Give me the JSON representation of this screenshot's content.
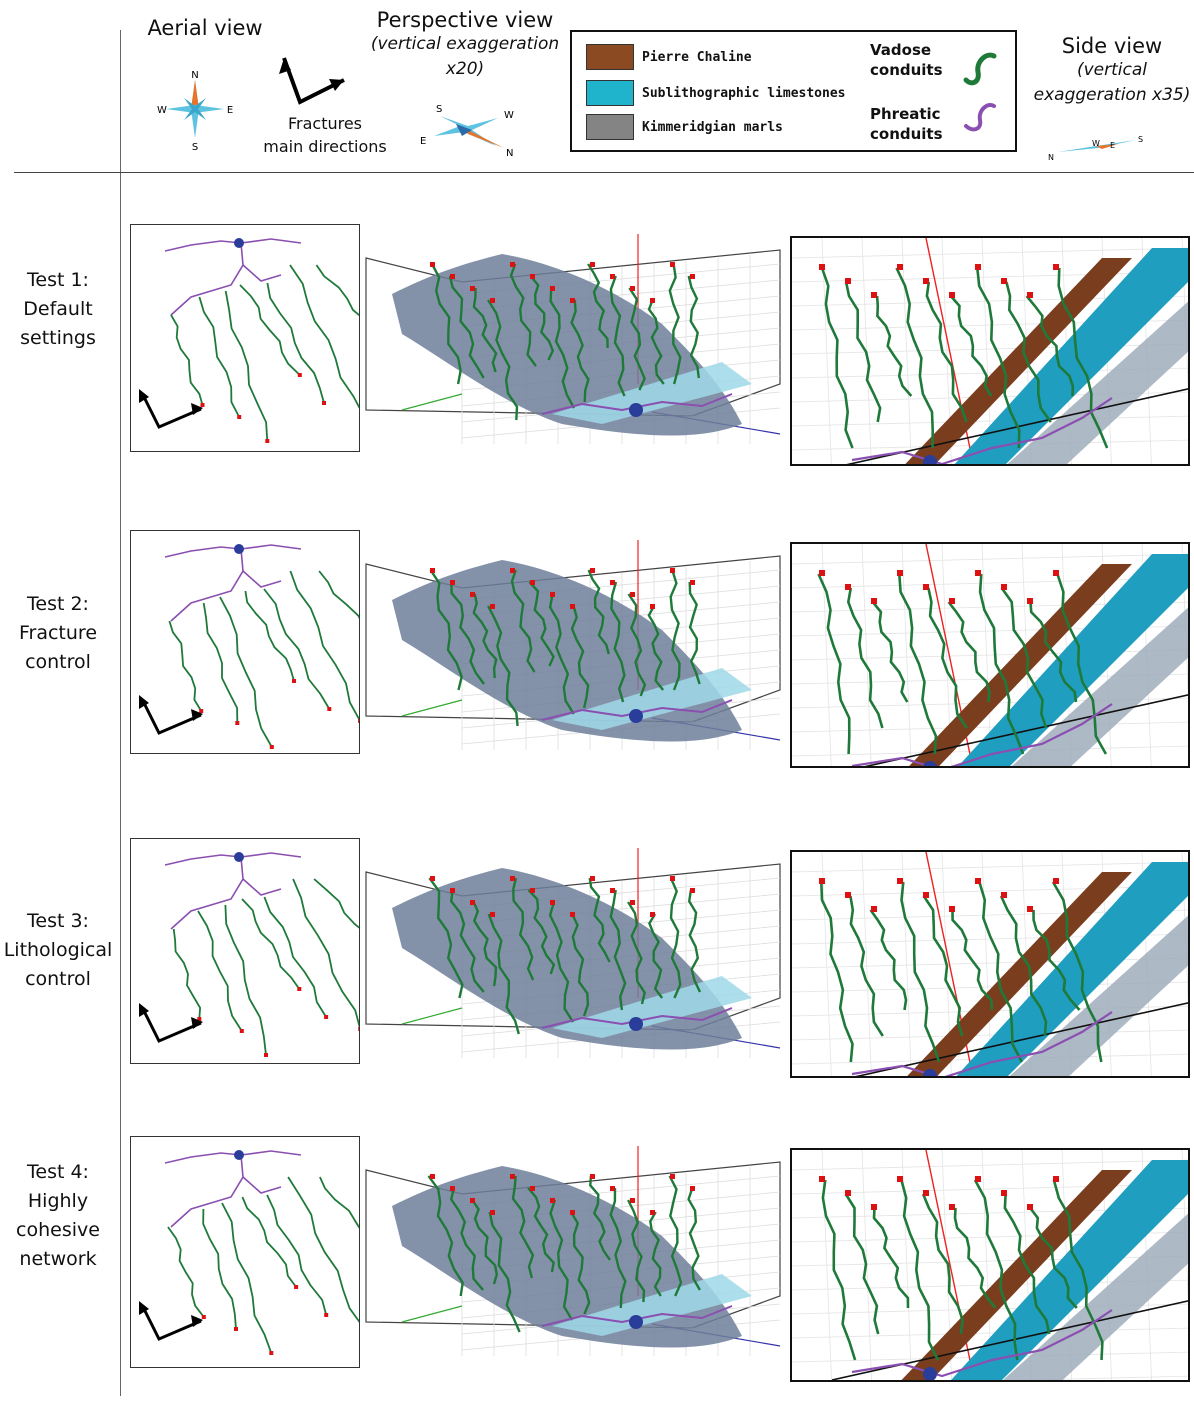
{
  "header": {
    "aerial_title": "Aerial view",
    "fractures_line1": "Fractures",
    "fractures_line2": "main directions",
    "perspective_title": "Perspective view",
    "perspective_sub1": "(vertical exaggeration",
    "perspective_sub2": "x20)",
    "side_title": "Side view",
    "side_sub1": "(vertical",
    "side_sub2": "exaggeration x35)"
  },
  "compass_aerial": {
    "n": "N",
    "s": "S",
    "e": "E",
    "w": "W"
  },
  "compass_persp": {
    "n": "N",
    "s": "S",
    "e": "E",
    "w": "W"
  },
  "compass_side": {
    "n": "N",
    "s": "S",
    "e": "E",
    "w": "W"
  },
  "legend": {
    "layers": [
      {
        "label": "Pierre Chaline",
        "color": "#8b4a22"
      },
      {
        "label": "Sublithographic limestones",
        "color": "#1fb4cc"
      },
      {
        "label": "Kimmeridgian marls",
        "color": "#848484"
      }
    ],
    "vadose_l1": "Vadose",
    "vadose_l2": "conduits",
    "vadose_color": "#1f7a3a",
    "phreatic_l1": "Phreatic",
    "phreatic_l2": "conduits",
    "phreatic_color": "#8a4fb0"
  },
  "rows": [
    {
      "l1": "Test 1:",
      "l2": "Default",
      "l3": "settings"
    },
    {
      "l1": "Test 2:",
      "l2": "Fracture",
      "l3": "control"
    },
    {
      "l1": "Test 3:",
      "l2": "Lithological",
      "l3": "control"
    },
    {
      "l1": "Test 4:",
      "l2": "Highly",
      "l3": "cohesive",
      "l4": "network"
    }
  ]
}
